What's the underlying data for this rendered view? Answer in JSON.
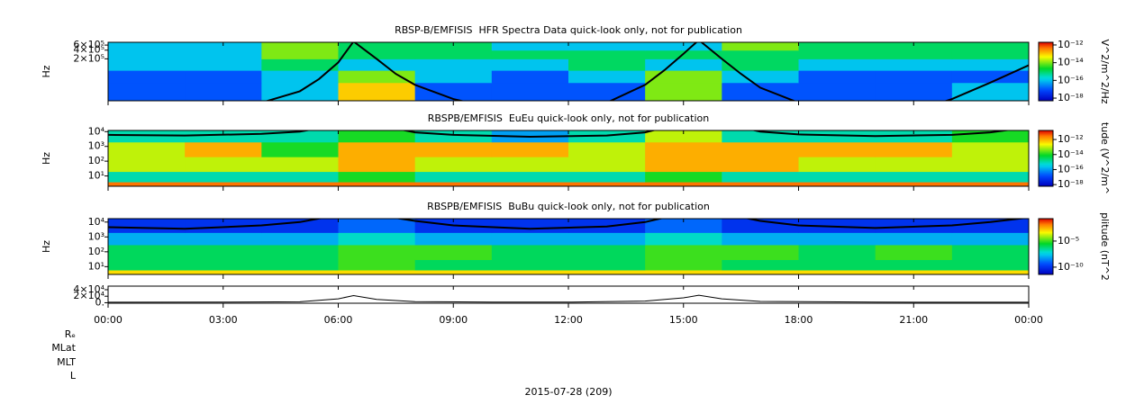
{
  "chart_data": [
    {
      "type": "heatmap",
      "title": "RBSP-B/EMFISIS  HFR Spectra Data quick-look only, not for publication",
      "ylabel": "Hz",
      "yscale": "log",
      "ylim": [
        7000,
        750000
      ],
      "yticks": [
        {
          "value": 200000,
          "label": "2×10⁵"
        },
        {
          "value": 400000,
          "label": "4×10⁵"
        },
        {
          "value": 600000,
          "label": "6×10⁵"
        }
      ],
      "xlim": [
        0,
        24
      ],
      "xticks": [
        0,
        3,
        6,
        9,
        12,
        15,
        18,
        21,
        24
      ],
      "x_edges": [
        0,
        2,
        4,
        6,
        8,
        10,
        12,
        14,
        16,
        18,
        20,
        22,
        24
      ],
      "y_edges": [
        7000,
        30000,
        80000,
        200000,
        400000,
        750000
      ],
      "z": [
        [
          1e-17,
          1e-17,
          1e-16,
          1e-13,
          1e-17,
          1e-17,
          1e-17,
          1e-14,
          1e-17,
          1e-17,
          1e-17,
          1e-16
        ],
        [
          1e-17,
          1e-17,
          1e-16,
          1e-14,
          1e-16,
          1e-17,
          1e-16,
          1e-14,
          1e-16,
          1e-17,
          1e-17,
          1e-17
        ],
        [
          1e-16,
          1e-16,
          1e-15,
          1e-16,
          1e-16,
          1e-16,
          1e-15,
          1e-16,
          1e-15,
          1e-16,
          1e-16,
          1e-16
        ],
        [
          1e-16,
          1e-16,
          1e-14,
          1e-15,
          1e-15,
          1e-15,
          1e-15,
          1e-15,
          1e-15,
          1e-15,
          1e-15,
          1e-15
        ],
        [
          1e-16,
          1e-16,
          1e-14,
          1e-15,
          1e-15,
          1e-16,
          1e-16,
          1e-16,
          1e-14,
          1e-15,
          1e-15,
          1e-15
        ]
      ],
      "colorbar": {
        "label": "V^2/m^2/Hz",
        "scale": "log",
        "clim": [
          5e-19,
          2e-12
        ],
        "ticks": [
          {
            "value": 1e-12,
            "label": "10⁻¹²"
          },
          {
            "value": 1e-14,
            "label": "10⁻¹⁴"
          },
          {
            "value": 1e-16,
            "label": "10⁻¹⁶"
          },
          {
            "value": 1e-18,
            "label": "10⁻¹⁸"
          }
        ]
      },
      "curve": {
        "color": "#000000",
        "x": [
          0,
          1,
          2,
          3,
          4,
          5,
          5.5,
          6,
          6.4,
          7,
          7.5,
          8,
          9,
          10,
          11,
          12,
          13,
          14,
          14.5,
          15,
          15.4,
          16,
          16.5,
          17,
          18,
          19,
          20,
          21,
          22,
          23,
          24
        ],
        "values": [
          2000,
          1800,
          2000,
          3000,
          6000,
          15000,
          40000,
          150000,
          800000,
          200000,
          60000,
          25000,
          8000,
          4000,
          3000,
          3500,
          6000,
          25000,
          80000,
          300000,
          900000,
          200000,
          60000,
          20000,
          6000,
          3000,
          2500,
          3000,
          8000,
          30000,
          120000
        ]
      }
    },
    {
      "type": "heatmap",
      "title": "RBSPB/EMFISIS  EuEu quick-look only, not for publication",
      "ylabel": "Hz",
      "yscale": "log",
      "ylim": [
        2,
        12000
      ],
      "yticks": [
        {
          "value": 10,
          "label": "10¹"
        },
        {
          "value": 100,
          "label": "10²"
        },
        {
          "value": 1000,
          "label": "10³"
        },
        {
          "value": 10000,
          "label": "10⁴"
        }
      ],
      "xlim": [
        0,
        24
      ],
      "xticks": [
        0,
        3,
        6,
        9,
        12,
        15,
        18,
        21,
        24
      ],
      "x_edges": [
        0,
        2,
        4,
        6,
        8,
        10,
        12,
        14,
        16,
        18,
        20,
        22,
        24
      ],
      "y_edges": [
        2,
        4,
        20,
        200,
        2000,
        12000
      ],
      "z": [
        [
          3e-12,
          3e-12,
          3e-12,
          3e-12,
          3e-12,
          3e-12,
          3e-12,
          3e-12,
          3e-12,
          3e-12,
          3e-12,
          3e-12
        ],
        [
          1e-15,
          1e-15,
          1e-15,
          1e-14,
          1e-15,
          1e-15,
          1e-15,
          1e-14,
          1e-15,
          1e-15,
          1e-15,
          1e-15
        ],
        [
          1e-13,
          1e-13,
          1e-13,
          1e-12,
          1e-13,
          1e-13,
          1e-13,
          1e-12,
          1e-12,
          1e-13,
          1e-13,
          1e-13
        ],
        [
          1e-13,
          1e-12,
          1e-14,
          1e-12,
          1e-12,
          1e-12,
          1e-13,
          1e-12,
          1e-12,
          1e-12,
          1e-12,
          1e-13
        ],
        [
          1e-15,
          1e-15,
          1e-15,
          1e-14,
          1e-15,
          1e-16,
          1e-15,
          1e-13,
          1e-15,
          1e-15,
          1e-15,
          1e-14
        ]
      ],
      "colorbar": {
        "label": "tude (V^2/m^",
        "scale": "log",
        "clim": [
          6e-19,
          1.6e-11
        ],
        "ticks": [
          {
            "value": 1e-12,
            "label": "10⁻¹²"
          },
          {
            "value": 1e-14,
            "label": "10⁻¹⁴"
          },
          {
            "value": 1e-16,
            "label": "10⁻¹⁶"
          },
          {
            "value": 1e-18,
            "label": "10⁻¹⁸"
          }
        ]
      },
      "curve": {
        "color": "#000000",
        "x": [
          0,
          2,
          4,
          5,
          6,
          7,
          8,
          9,
          11,
          13,
          14,
          15,
          16,
          17,
          18,
          20,
          22,
          23,
          24
        ],
        "values": [
          6000,
          5500,
          7000,
          10000,
          30000,
          30000,
          9000,
          6000,
          4500,
          5500,
          9000,
          40000,
          40000,
          10000,
          6500,
          5000,
          6000,
          9000,
          20000
        ]
      }
    },
    {
      "type": "heatmap",
      "title": "RBSPB/EMFISIS  BuBu quick-look only, not for publication",
      "ylabel": "Hz",
      "yscale": "log",
      "ylim": [
        3,
        17000
      ],
      "yticks": [
        {
          "value": 10,
          "label": "10¹"
        },
        {
          "value": 100,
          "label": "10²"
        },
        {
          "value": 1000,
          "label": "10³"
        },
        {
          "value": 10000,
          "label": "10⁴"
        }
      ],
      "xlim": [
        0,
        24
      ],
      "xticks": [
        0,
        3,
        6,
        9,
        12,
        15,
        18,
        21,
        24
      ],
      "x_edges": [
        0,
        2,
        4,
        6,
        8,
        10,
        12,
        14,
        16,
        18,
        20,
        22,
        24
      ],
      "y_edges": [
        3,
        6,
        30,
        300,
        2000,
        17000
      ],
      "z": [
        [
          0.001,
          0.001,
          0.001,
          0.001,
          0.001,
          0.001,
          0.001,
          0.001,
          0.001,
          0.001,
          0.001,
          0.001
        ],
        [
          1e-06,
          1e-06,
          1e-06,
          1e-05,
          1e-06,
          1e-06,
          1e-06,
          1e-05,
          1e-06,
          1e-06,
          1e-06,
          1e-06
        ],
        [
          1e-06,
          1e-06,
          1e-06,
          1e-05,
          1e-05,
          1e-06,
          1e-06,
          1e-05,
          1e-05,
          1e-06,
          1e-05,
          1e-06
        ],
        [
          1e-08,
          1e-08,
          1e-08,
          1e-07,
          1e-08,
          1e-08,
          1e-08,
          1e-07,
          1e-08,
          1e-08,
          1e-08,
          1e-08
        ],
        [
          1e-10,
          1e-10,
          1e-10,
          1e-09,
          1e-10,
          1e-10,
          1e-10,
          1e-09,
          1e-10,
          1e-10,
          1e-10,
          1e-10
        ]
      ],
      "colorbar": {
        "label": "plitude (nT^2",
        "scale": "log",
        "clim": [
          4e-12,
          0.2
        ],
        "ticks": [
          {
            "value": 1e-05,
            "label": "10⁻⁵"
          },
          {
            "value": 1e-10,
            "label": "10⁻¹⁰"
          }
        ]
      },
      "curve": {
        "color": "#000000",
        "x": [
          0,
          2,
          4,
          5,
          6,
          7,
          8,
          9,
          11,
          13,
          14,
          15,
          16,
          17,
          18,
          20,
          22,
          23,
          24
        ],
        "values": [
          4500,
          3500,
          6000,
          10000,
          30000,
          30000,
          12000,
          6000,
          3500,
          5000,
          10000,
          40000,
          40000,
          12000,
          6000,
          4000,
          6000,
          10000,
          20000
        ]
      }
    },
    {
      "type": "line",
      "ylim": [
        -1500,
        51000
      ],
      "yticks": [
        {
          "value": 0,
          "label": "0."
        },
        {
          "value": 20000,
          "label": "2×10⁴"
        },
        {
          "value": 40000,
          "label": "4×10⁴"
        }
      ],
      "xlim": [
        0,
        24
      ],
      "xticks": [
        {
          "value": 0,
          "label": "00:00"
        },
        {
          "value": 3,
          "label": "03:00"
        },
        {
          "value": 6,
          "label": "06:00"
        },
        {
          "value": 9,
          "label": "09:00"
        },
        {
          "value": 12,
          "label": "12:00"
        },
        {
          "value": 15,
          "label": "15:00"
        },
        {
          "value": 18,
          "label": "18:00"
        },
        {
          "value": 21,
          "label": "21:00"
        },
        {
          "value": 24,
          "label": "00:00"
        }
      ],
      "x": [
        0,
        3,
        5,
        6,
        6.4,
        7,
        8,
        10,
        12,
        14,
        15,
        15.4,
        16,
        17,
        20,
        24
      ],
      "series": [
        {
          "color": "#000000",
          "values": [
            1500,
            1800,
            3000,
            12000,
            22000,
            10000,
            3500,
            1800,
            1800,
            5000,
            15000,
            23000,
            12000,
            4000,
            1800,
            1500
          ]
        }
      ],
      "row_labels": [
        "Rₑ",
        "MLat",
        "MLT",
        "L"
      ],
      "xlabel": "2015-07-28 (209)"
    }
  ]
}
